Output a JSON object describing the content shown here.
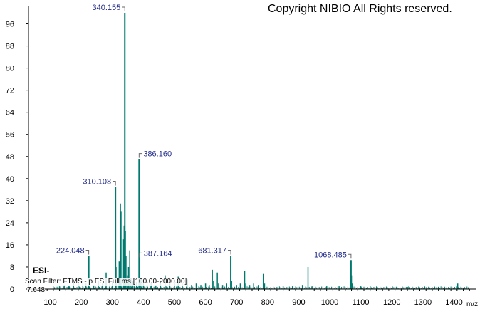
{
  "header": {
    "copyright": "Copyright NIBIO All Rights reserved."
  },
  "annotations": {
    "mode": "ESI-",
    "scan_filter": "Scan Filter: FTMS - p ESI Full ms [100.00-2000.00]",
    "max_intensity": "7.648"
  },
  "colors": {
    "peak": "#007a6e",
    "label": "#1f2a8a",
    "axis": "#000000"
  },
  "chart_data": {
    "type": "bar",
    "title": "",
    "xlabel": "m/z",
    "ylabel": "",
    "xlim": [
      30,
      1470
    ],
    "ylim": [
      0,
      100
    ],
    "xticks": [
      100,
      200,
      300,
      400,
      500,
      600,
      700,
      800,
      900,
      1000,
      1100,
      1200,
      1300,
      1400
    ],
    "yticks": [
      0,
      8,
      16,
      24,
      32,
      40,
      48,
      56,
      64,
      72,
      80,
      88,
      96
    ],
    "grid": false,
    "peaks": [
      {
        "x": 130,
        "y": 1.0
      },
      {
        "x": 145,
        "y": 1.5
      },
      {
        "x": 160,
        "y": 1.0
      },
      {
        "x": 175,
        "y": 2.5
      },
      {
        "x": 190,
        "y": 2.0
      },
      {
        "x": 205,
        "y": 3.5
      },
      {
        "x": 215,
        "y": 2.0
      },
      {
        "x": 224.048,
        "y": 12.0,
        "label": "224.048"
      },
      {
        "x": 240,
        "y": 1.5
      },
      {
        "x": 255,
        "y": 3.0
      },
      {
        "x": 268,
        "y": 2.0
      },
      {
        "x": 280,
        "y": 6.0
      },
      {
        "x": 292,
        "y": 3.0
      },
      {
        "x": 300,
        "y": 2.5
      },
      {
        "x": 310.108,
        "y": 37.0,
        "label": "310.108"
      },
      {
        "x": 312,
        "y": 8.0
      },
      {
        "x": 318,
        "y": 4.0
      },
      {
        "x": 322,
        "y": 10.0
      },
      {
        "x": 326,
        "y": 31.0
      },
      {
        "x": 328,
        "y": 28.0
      },
      {
        "x": 336,
        "y": 18.0
      },
      {
        "x": 338,
        "y": 23.0
      },
      {
        "x": 340.155,
        "y": 100.0,
        "label": "340.155"
      },
      {
        "x": 342,
        "y": 21.0
      },
      {
        "x": 344,
        "y": 12.0
      },
      {
        "x": 348,
        "y": 5.0
      },
      {
        "x": 352,
        "y": 8.0
      },
      {
        "x": 356,
        "y": 14.0
      },
      {
        "x": 360,
        "y": 4.0
      },
      {
        "x": 366,
        "y": 3.0
      },
      {
        "x": 372,
        "y": 4.0
      },
      {
        "x": 378,
        "y": 2.5
      },
      {
        "x": 386.16,
        "y": 47.0,
        "label": "386.160"
      },
      {
        "x": 387.164,
        "y": 11.0,
        "label": "387.164"
      },
      {
        "x": 392,
        "y": 4.0
      },
      {
        "x": 400,
        "y": 2.0
      },
      {
        "x": 412,
        "y": 1.5
      },
      {
        "x": 425,
        "y": 2.0
      },
      {
        "x": 440,
        "y": 1.5
      },
      {
        "x": 455,
        "y": 3.0
      },
      {
        "x": 470,
        "y": 5.0
      },
      {
        "x": 485,
        "y": 2.0
      },
      {
        "x": 500,
        "y": 2.5
      },
      {
        "x": 512,
        "y": 4.5
      },
      {
        "x": 525,
        "y": 2.0
      },
      {
        "x": 540,
        "y": 3.5
      },
      {
        "x": 555,
        "y": 1.5
      },
      {
        "x": 570,
        "y": 2.0
      },
      {
        "x": 585,
        "y": 1.5
      },
      {
        "x": 600,
        "y": 2.0
      },
      {
        "x": 612,
        "y": 1.5
      },
      {
        "x": 622,
        "y": 7.0
      },
      {
        "x": 626,
        "y": 3.0
      },
      {
        "x": 638,
        "y": 6.0
      },
      {
        "x": 642,
        "y": 2.0
      },
      {
        "x": 655,
        "y": 1.5
      },
      {
        "x": 668,
        "y": 2.0
      },
      {
        "x": 681.317,
        "y": 12.0,
        "label": "681.317"
      },
      {
        "x": 684,
        "y": 3.0
      },
      {
        "x": 700,
        "y": 1.5
      },
      {
        "x": 712,
        "y": 2.0
      },
      {
        "x": 726,
        "y": 6.5
      },
      {
        "x": 730,
        "y": 2.0
      },
      {
        "x": 742,
        "y": 1.5
      },
      {
        "x": 755,
        "y": 2.0
      },
      {
        "x": 770,
        "y": 1.5
      },
      {
        "x": 786,
        "y": 5.5
      },
      {
        "x": 790,
        "y": 2.0
      },
      {
        "x": 850,
        "y": 1.0
      },
      {
        "x": 880,
        "y": 1.0
      },
      {
        "x": 912,
        "y": 1.5
      },
      {
        "x": 930,
        "y": 8.0
      },
      {
        "x": 945,
        "y": 1.0
      },
      {
        "x": 990,
        "y": 1.0
      },
      {
        "x": 1030,
        "y": 1.0
      },
      {
        "x": 1068.485,
        "y": 10.5,
        "label": "1068.485"
      },
      {
        "x": 1070,
        "y": 5.0
      },
      {
        "x": 1072,
        "y": 2.0
      },
      {
        "x": 1100,
        "y": 1.0
      },
      {
        "x": 1130,
        "y": 1.0
      },
      {
        "x": 1250,
        "y": 0.8
      },
      {
        "x": 1350,
        "y": 0.8
      },
      {
        "x": 1412,
        "y": 2.0
      }
    ]
  }
}
